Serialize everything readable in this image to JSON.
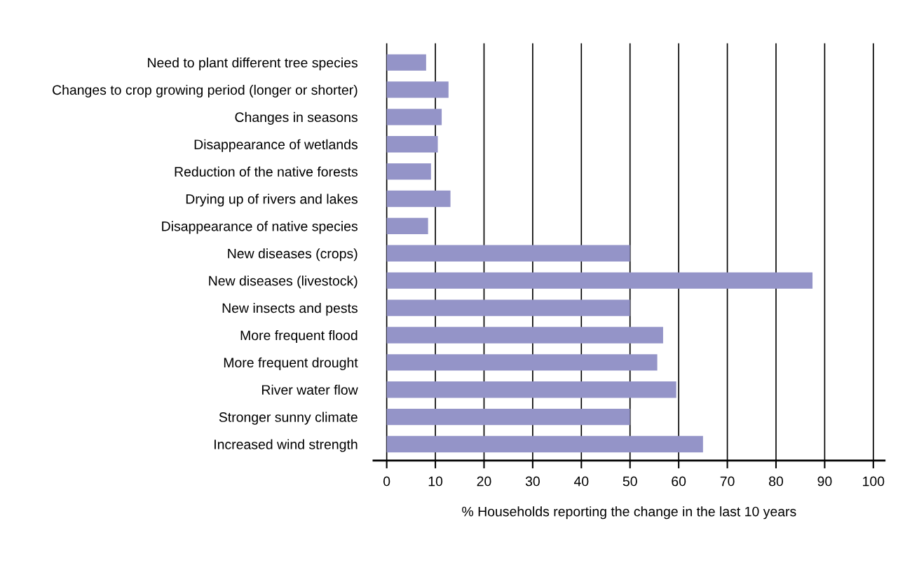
{
  "chart_data": {
    "type": "bar",
    "orientation": "horizontal",
    "xlabel": "% Households reporting the change in the last 10 years",
    "categories": [
      "Need to plant different tree species",
      "Changes to crop growing period (longer or shorter)",
      "Changes in seasons",
      "Disappearance of wetlands",
      "Reduction of the native forests",
      "Drying up of rivers and lakes",
      "Disappearance of native species",
      "New diseases (crops)",
      "New diseases (livestock)",
      "New insects and pests",
      "More frequent flood",
      "More frequent drought",
      "River water flow",
      "Stronger sunny climate",
      "Increased wind strength"
    ],
    "values": [
      8.1,
      12.7,
      11.3,
      10.5,
      9.1,
      13.1,
      8.5,
      50,
      87.5,
      50,
      56.8,
      55.6,
      59.5,
      50,
      65
    ],
    "color": "#9494c8",
    "xlim": [
      -2.7,
      102.3
    ],
    "xticks": [
      0,
      10,
      20,
      30,
      40,
      50,
      60,
      70,
      80,
      90,
      100
    ],
    "grid": "x"
  }
}
